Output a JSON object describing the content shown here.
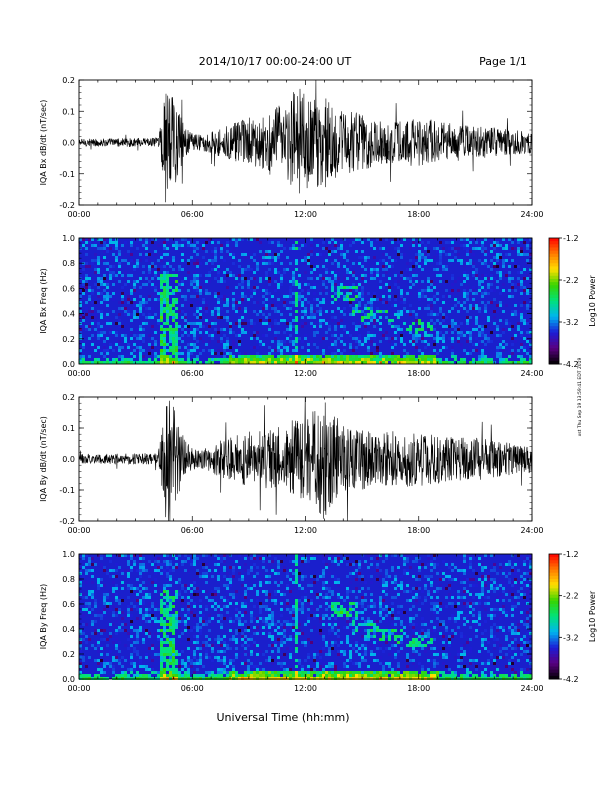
{
  "header": {
    "title": "2014/10/17  00:00-24:00 UT",
    "page": "Page 1/1"
  },
  "footer": {
    "xlabel": "Universal Time (hh:mm)",
    "stamp": "xst Thu Sep 19 13:59:41 EDT 2019"
  },
  "colors": {
    "trace": "#000000",
    "spectrogram_background": "#1a1fcc",
    "colormap": [
      "#000000",
      "#5a0082",
      "#1c1cd6",
      "#00b4f0",
      "#00e27a",
      "#38d400",
      "#ffe000",
      "#ff7a00",
      "#ff0000"
    ]
  },
  "chart_data": [
    {
      "type": "line",
      "ylabel": "IQA Bx dB/dt (nT/sec)",
      "xlim": [
        0,
        24
      ],
      "ylim": [
        -0.2,
        0.2
      ],
      "x_ticks": [
        "00:00",
        "06:00",
        "12:00",
        "18:00",
        "24:00"
      ],
      "y_ticks": [
        "-0.2",
        "-0.1",
        "0.0",
        "0.1",
        "0.2"
      ],
      "envelope": {
        "x": [
          0,
          4.2,
          4.4,
          4.6,
          4.8,
          5.2,
          5.6,
          6.0,
          6.5,
          7.5,
          8.5,
          9.0,
          9.5,
          10,
          10.5,
          11,
          11.5,
          12,
          12.5,
          13,
          13.5,
          14,
          14.5,
          15,
          15.5,
          16,
          17,
          18,
          19,
          20,
          21,
          22,
          23,
          24
        ],
        "y": [
          0.012,
          0.015,
          0.1,
          0.2,
          0.2,
          0.12,
          0.05,
          0.03,
          0.025,
          0.05,
          0.07,
          0.08,
          0.08,
          0.1,
          0.12,
          0.11,
          0.2,
          0.16,
          0.14,
          0.15,
          0.12,
          0.1,
          0.1,
          0.09,
          0.08,
          0.07,
          0.07,
          0.08,
          0.07,
          0.06,
          0.05,
          0.05,
          0.04,
          0.035
        ]
      }
    },
    {
      "type": "heatmap",
      "ylabel": "IQA Bx Freq (Hz)",
      "xlim": [
        0,
        24
      ],
      "ylim": [
        0,
        1.0
      ],
      "x_ticks": [
        "00:00",
        "06:00",
        "12:00",
        "18:00",
        "24:00"
      ],
      "y_ticks": [
        "0.0",
        "0.2",
        "0.4",
        "0.6",
        "0.8",
        "1.0"
      ],
      "colorbar": {
        "label": "Log10 Power",
        "range": [
          -4.2,
          -1.2
        ],
        "ticks": [
          "-1.2",
          "-2.2",
          "-3.2",
          "-4.2"
        ]
      }
    },
    {
      "type": "line",
      "ylabel": "IQA By dB/dt (nT/sec)",
      "xlim": [
        0,
        24
      ],
      "ylim": [
        -0.2,
        0.2
      ],
      "x_ticks": [
        "00:00",
        "06:00",
        "12:00",
        "18:00",
        "24:00"
      ],
      "y_ticks": [
        "-0.2",
        "-0.1",
        "0.0",
        "0.1",
        "0.2"
      ],
      "envelope": {
        "x": [
          0,
          4.2,
          4.4,
          4.6,
          4.8,
          5.2,
          5.6,
          6.0,
          6.5,
          7.5,
          8.5,
          9.0,
          9.5,
          10,
          10.5,
          11,
          11.5,
          12,
          12.5,
          13,
          13.5,
          14,
          14.5,
          15,
          15.5,
          16,
          17,
          18,
          19,
          20,
          21,
          22,
          23,
          24
        ],
        "y": [
          0.015,
          0.02,
          0.12,
          0.2,
          0.2,
          0.14,
          0.06,
          0.035,
          0.03,
          0.06,
          0.08,
          0.09,
          0.09,
          0.1,
          0.1,
          0.12,
          0.13,
          0.14,
          0.17,
          0.2,
          0.14,
          0.12,
          0.1,
          0.1,
          0.09,
          0.09,
          0.09,
          0.09,
          0.08,
          0.07,
          0.07,
          0.06,
          0.05,
          0.045
        ]
      }
    },
    {
      "type": "heatmap",
      "ylabel": "IQA By Freq (Hz)",
      "xlim": [
        0,
        24
      ],
      "ylim": [
        0,
        1.0
      ],
      "x_ticks": [
        "00:00",
        "06:00",
        "12:00",
        "18:00",
        "24:00"
      ],
      "y_ticks": [
        "0.0",
        "0.2",
        "0.4",
        "0.6",
        "0.8",
        "1.0"
      ],
      "colorbar": {
        "label": "Log10 Power",
        "range": [
          -4.2,
          -1.2
        ],
        "ticks": [
          "-1.2",
          "-2.2",
          "-3.2",
          "-4.2"
        ]
      }
    }
  ]
}
